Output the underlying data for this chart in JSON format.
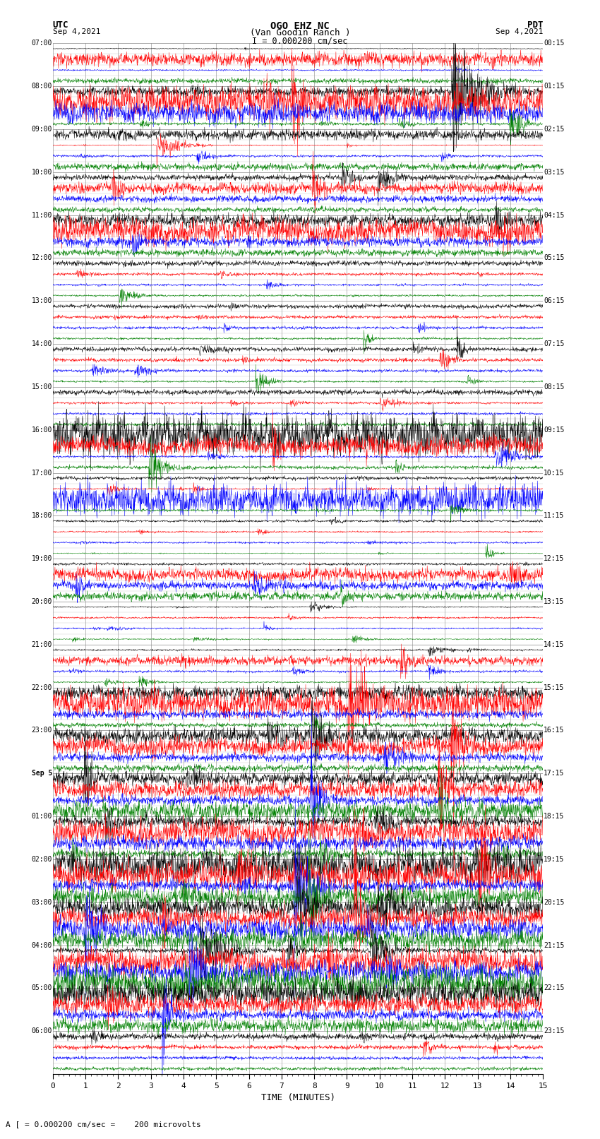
{
  "title_line1": "OGO EHZ NC",
  "title_line2": "(Van Goodin Ranch )",
  "scale_text": "I = 0.000200 cm/sec",
  "footer_text": "A [ = 0.000200 cm/sec =    200 microvolts",
  "utc_label": "UTC",
  "pdt_label": "PDT",
  "date_left": "Sep 4,2021",
  "date_right": "Sep 4,2021",
  "xlabel": "TIME (MINUTES)",
  "x_ticks": [
    0,
    1,
    2,
    3,
    4,
    5,
    6,
    7,
    8,
    9,
    10,
    11,
    12,
    13,
    14,
    15
  ],
  "utc_times": [
    "07:00",
    "",
    "",
    "",
    "08:00",
    "",
    "",
    "",
    "09:00",
    "",
    "",
    "",
    "10:00",
    "",
    "",
    "",
    "11:00",
    "",
    "",
    "",
    "12:00",
    "",
    "",
    "",
    "13:00",
    "",
    "",
    "",
    "14:00",
    "",
    "",
    "",
    "15:00",
    "",
    "",
    "",
    "16:00",
    "",
    "",
    "",
    "17:00",
    "",
    "",
    "",
    "18:00",
    "",
    "",
    "",
    "19:00",
    "",
    "",
    "",
    "20:00",
    "",
    "",
    "",
    "21:00",
    "",
    "",
    "",
    "22:00",
    "",
    "",
    "",
    "23:00",
    "",
    "",
    "",
    "Sep 5",
    "",
    "",
    "",
    "01:00",
    "",
    "",
    "",
    "02:00",
    "",
    "",
    "",
    "03:00",
    "",
    "",
    "",
    "04:00",
    "",
    "",
    "",
    "05:00",
    "",
    "",
    "",
    "06:00",
    "",
    "",
    ""
  ],
  "pdt_times": [
    "00:15",
    "",
    "",
    "",
    "01:15",
    "",
    "",
    "",
    "02:15",
    "",
    "",
    "",
    "03:15",
    "",
    "",
    "",
    "04:15",
    "",
    "",
    "",
    "05:15",
    "",
    "",
    "",
    "06:15",
    "",
    "",
    "",
    "07:15",
    "",
    "",
    "",
    "08:15",
    "",
    "",
    "",
    "09:15",
    "",
    "",
    "",
    "10:15",
    "",
    "",
    "",
    "11:15",
    "",
    "",
    "",
    "12:15",
    "",
    "",
    "",
    "13:15",
    "",
    "",
    "",
    "14:15",
    "",
    "",
    "",
    "15:15",
    "",
    "",
    "",
    "16:15",
    "",
    "",
    "",
    "17:15",
    "",
    "",
    "",
    "18:15",
    "",
    "",
    "",
    "19:15",
    "",
    "",
    "",
    "20:15",
    "",
    "",
    "",
    "21:15",
    "",
    "",
    "",
    "22:15",
    "",
    "",
    "",
    "23:15",
    "",
    "",
    ""
  ],
  "colors_cycle": [
    "black",
    "red",
    "blue",
    "green"
  ],
  "bg_color": "white",
  "grid_color": "#aaaaaa",
  "n_traces": 96,
  "traces_per_hour": 4,
  "n_hours": 24,
  "amplitude_by_row": [
    0.05,
    0.8,
    0.1,
    0.3,
    1.5,
    2.0,
    1.2,
    0.4,
    0.6,
    0.3,
    0.2,
    0.4,
    0.5,
    0.8,
    0.4,
    0.3,
    0.8,
    1.5,
    0.6,
    0.4,
    0.3,
    0.2,
    0.15,
    0.2,
    0.25,
    0.2,
    0.2,
    0.2,
    0.4,
    0.3,
    0.25,
    0.25,
    0.3,
    0.2,
    0.15,
    0.2,
    2.5,
    1.2,
    0.3,
    0.5,
    0.2,
    0.15,
    1.8,
    0.2,
    0.15,
    0.12,
    0.12,
    0.12,
    0.15,
    0.8,
    0.6,
    0.5,
    0.12,
    0.12,
    0.12,
    0.12,
    0.15,
    0.6,
    0.2,
    0.15,
    0.8,
    2.0,
    0.5,
    0.3,
    1.2,
    1.5,
    0.6,
    0.4,
    1.0,
    1.2,
    1.0,
    1.2,
    0.8,
    1.5,
    0.8,
    0.6,
    2.0,
    2.0,
    1.5,
    1.5,
    1.5,
    1.8,
    1.5,
    1.2,
    1.2,
    1.5,
    1.5,
    1.8,
    1.5,
    1.2,
    1.0,
    0.8,
    0.4,
    0.3,
    0.2,
    0.2
  ]
}
